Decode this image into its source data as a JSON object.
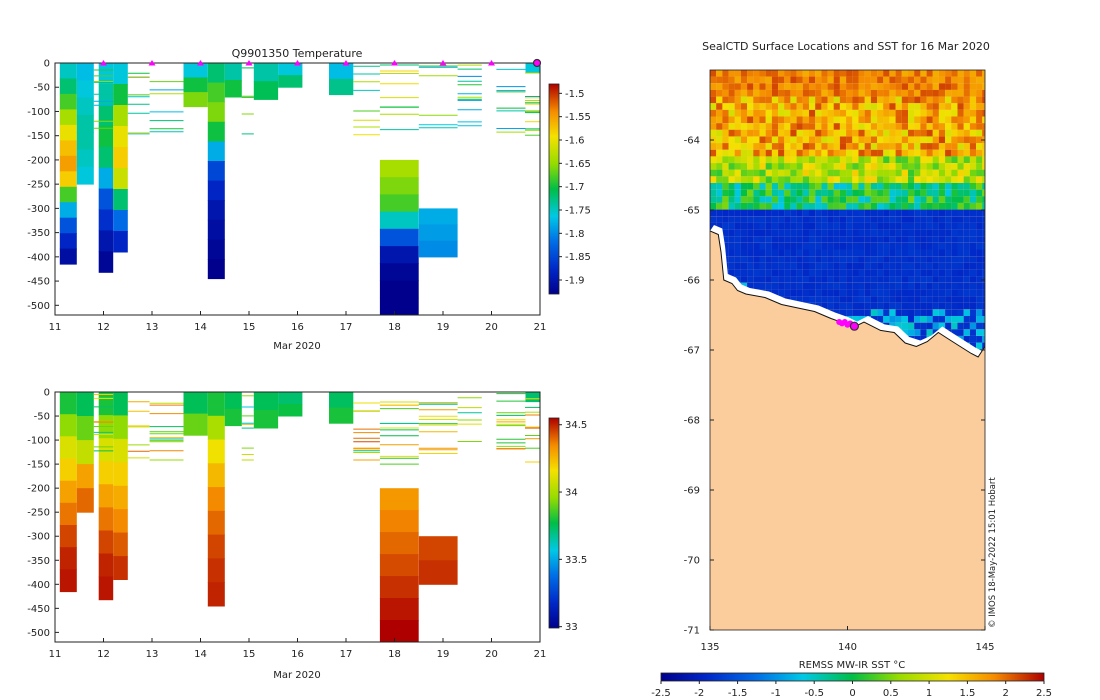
{
  "chart_data": [
    {
      "type": "heatmap",
      "id": "temperature",
      "title": "Q9901350  Temperature",
      "xlabel": "Mar 2020",
      "ylabel": "",
      "x_ticks": [
        "11",
        "12",
        "13",
        "14",
        "15",
        "16",
        "17",
        "18",
        "19",
        "20",
        "21"
      ],
      "xlim": [
        11,
        21
      ],
      "y_ticks": [
        "0",
        "-50",
        "-100",
        "-150",
        "-200",
        "-250",
        "-300",
        "-350",
        "-400",
        "-450",
        "-500"
      ],
      "ylim": [
        -520,
        0
      ],
      "colorbar": {
        "min": -1.93,
        "max": -1.48,
        "ticks": [
          "-1.5",
          "-1.55",
          "-1.6",
          "-1.65",
          "-1.7",
          "-1.75",
          "-1.8",
          "-1.85",
          "-1.9"
        ]
      },
      "profile_markers": [
        12,
        13,
        14,
        15,
        16,
        17,
        18,
        19,
        20
      ],
      "last_profile": 21,
      "marker_color": "#ff00ff",
      "columns": [
        {
          "x0": 11.1,
          "x1": 11.45,
          "depth": 415,
          "values": [
            -1.75,
            -1.72,
            -1.68,
            -1.64,
            -1.6,
            -1.57,
            -1.55,
            -1.58,
            -1.68,
            -1.78,
            -1.84,
            -1.88,
            -1.91
          ]
        },
        {
          "x0": 11.45,
          "x1": 11.8,
          "depth": 250,
          "values": [
            -1.77,
            -1.76,
            -1.75,
            -1.74,
            -1.74,
            -1.75,
            -1.76
          ]
        },
        {
          "x0": 11.9,
          "x1": 12.2,
          "depth": 432,
          "values": [
            -1.76,
            -1.74,
            -1.72,
            -1.7,
            -1.72,
            -1.78,
            -1.84,
            -1.87,
            -1.9,
            -1.92
          ]
        },
        {
          "x0": 12.2,
          "x1": 12.5,
          "depth": 390,
          "values": [
            -1.76,
            -1.7,
            -1.64,
            -1.6,
            -1.58,
            -1.62,
            -1.72,
            -1.82,
            -1.88
          ]
        },
        {
          "x0": 13.65,
          "x1": 14.15,
          "depth": 90,
          "values": [
            -1.76,
            -1.7,
            -1.66
          ]
        },
        {
          "x0": 14.15,
          "x1": 14.5,
          "depth": 445,
          "values": [
            -1.72,
            -1.68,
            -1.66,
            -1.7,
            -1.78,
            -1.85,
            -1.88,
            -1.9,
            -1.91,
            -1.92,
            -1.93
          ]
        },
        {
          "x0": 14.5,
          "x1": 14.85,
          "depth": 70,
          "values": [
            -1.74,
            -1.7
          ]
        },
        {
          "x0": 15.1,
          "x1": 15.6,
          "depth": 75,
          "values": [
            -1.74,
            -1.71
          ]
        },
        {
          "x0": 15.6,
          "x1": 16.1,
          "depth": 50,
          "values": [
            -1.76,
            -1.72
          ]
        },
        {
          "x0": 16.65,
          "x1": 17.15,
          "depth": 65,
          "values": [
            -1.77,
            -1.73
          ]
        },
        {
          "x0": 17.7,
          "x1": 18.5,
          "depth": 520,
          "top": 200,
          "values": [
            -1.64,
            -1.66,
            -1.68,
            -1.75,
            -1.84,
            -1.9,
            -1.92,
            -1.93,
            -1.93
          ]
        },
        {
          "x0": 18.5,
          "x1": 19.3,
          "depth": 400,
          "top": 300,
          "values": [
            -1.78,
            -1.79,
            -1.8
          ]
        },
        {
          "x0": 20.7,
          "x1": 21.0,
          "depth": 20,
          "values": [
            -1.76
          ]
        }
      ]
    },
    {
      "type": "heatmap",
      "id": "salinity",
      "title": "",
      "xlabel": "Mar 2020",
      "ylabel": "",
      "x_ticks": [
        "11",
        "12",
        "13",
        "14",
        "15",
        "16",
        "17",
        "18",
        "19",
        "20",
        "21"
      ],
      "xlim": [
        11,
        21
      ],
      "y_ticks": [
        "0",
        "-50",
        "-100",
        "-150",
        "-200",
        "-250",
        "-300",
        "-350",
        "-400",
        "-450",
        "-500"
      ],
      "ylim": [
        -520,
        0
      ],
      "colorbar": {
        "min": 32.99,
        "max": 34.55,
        "ticks": [
          "34.5",
          "34",
          "33.5",
          "33"
        ]
      },
      "columns": [
        {
          "x0": 11.1,
          "x1": 11.45,
          "depth": 415,
          "values": [
            33.8,
            33.95,
            34.1,
            34.2,
            34.3,
            34.38,
            34.45,
            34.5,
            34.52
          ]
        },
        {
          "x0": 11.45,
          "x1": 11.8,
          "depth": 250,
          "values": [
            33.75,
            33.9,
            34.05,
            34.3,
            34.4
          ]
        },
        {
          "x0": 11.9,
          "x1": 12.2,
          "depth": 432,
          "values": [
            33.8,
            33.95,
            34.1,
            34.2,
            34.3,
            34.38,
            34.45,
            34.5,
            34.52
          ]
        },
        {
          "x0": 12.2,
          "x1": 12.5,
          "depth": 390,
          "values": [
            33.75,
            33.95,
            34.1,
            34.2,
            34.28,
            34.35,
            34.42,
            34.48
          ]
        },
        {
          "x0": 13.65,
          "x1": 14.15,
          "depth": 90,
          "values": [
            33.75,
            33.9
          ]
        },
        {
          "x0": 14.15,
          "x1": 14.5,
          "depth": 445,
          "values": [
            33.8,
            34.0,
            34.15,
            34.25,
            34.35,
            34.4,
            34.45,
            34.48,
            34.5
          ]
        },
        {
          "x0": 14.5,
          "x1": 14.85,
          "depth": 70,
          "values": [
            33.75,
            33.8
          ]
        },
        {
          "x0": 15.1,
          "x1": 15.6,
          "depth": 75,
          "values": [
            33.75,
            33.8
          ]
        },
        {
          "x0": 15.6,
          "x1": 16.1,
          "depth": 50,
          "values": [
            33.72,
            33.78
          ]
        },
        {
          "x0": 16.65,
          "x1": 17.15,
          "depth": 65,
          "values": [
            33.74,
            33.8
          ]
        },
        {
          "x0": 17.7,
          "x1": 18.5,
          "depth": 520,
          "top": 200,
          "values": [
            34.32,
            34.36,
            34.4,
            34.44,
            34.48,
            34.52,
            34.55
          ]
        },
        {
          "x0": 18.5,
          "x1": 19.3,
          "depth": 400,
          "top": 300,
          "values": [
            34.45,
            34.48
          ]
        },
        {
          "x0": 20.7,
          "x1": 21.0,
          "depth": 20,
          "values": [
            33.72
          ]
        }
      ]
    },
    {
      "type": "heatmap",
      "id": "sst_map",
      "title": "SealCTD Surface Locations and SST for 16 Mar 2020",
      "xlabel": "",
      "ylabel": "",
      "x_ticks": [
        "135",
        "140",
        "145"
      ],
      "xlim": [
        135,
        145
      ],
      "y_ticks": [
        "-64",
        "-65",
        "-66",
        "-67",
        "-68",
        "-69",
        "-70",
        "-71"
      ],
      "ylim": [
        -71,
        -63
      ],
      "colorbar_label": "REMSS MW-IR SST °C",
      "colorbar": {
        "min": -2.5,
        "max": 2.5,
        "ticks": [
          "-2.5",
          "-2",
          "-1.5",
          "-1",
          "-0.5",
          "0",
          "0.5",
          "1",
          "1.5",
          "2",
          "2.5"
        ]
      },
      "land_color": "#fbcc9c",
      "coast": [
        [
          135,
          -65.3
        ],
        [
          135.3,
          -65.35
        ],
        [
          135.4,
          -65.6
        ],
        [
          135.5,
          -66
        ],
        [
          135.8,
          -66.05
        ],
        [
          136,
          -66.15
        ],
        [
          136.3,
          -66.2
        ],
        [
          137,
          -66.25
        ],
        [
          137.6,
          -66.35
        ],
        [
          138.2,
          -66.4
        ],
        [
          138.8,
          -66.45
        ],
        [
          139.4,
          -66.55
        ],
        [
          139.9,
          -66.62
        ],
        [
          140.2,
          -66.68
        ],
        [
          140.6,
          -66.6
        ],
        [
          141.2,
          -66.72
        ],
        [
          141.7,
          -66.75
        ],
        [
          142.1,
          -66.9
        ],
        [
          142.5,
          -66.95
        ],
        [
          142.9,
          -66.88
        ],
        [
          143.3,
          -66.75
        ],
        [
          143.7,
          -66.85
        ],
        [
          144.1,
          -66.95
        ],
        [
          144.5,
          -67.05
        ],
        [
          144.75,
          -67.1
        ],
        [
          145,
          -66.95
        ]
      ],
      "seal_locations": [
        [
          139.7,
          -66.6
        ],
        [
          139.8,
          -66.62
        ],
        [
          139.9,
          -66.6
        ],
        [
          140.0,
          -66.64
        ],
        [
          140.1,
          -66.62
        ],
        [
          140.25,
          -66.66
        ]
      ],
      "credit": "© IMOS 18-May-2022 15:01 Hobart"
    }
  ]
}
